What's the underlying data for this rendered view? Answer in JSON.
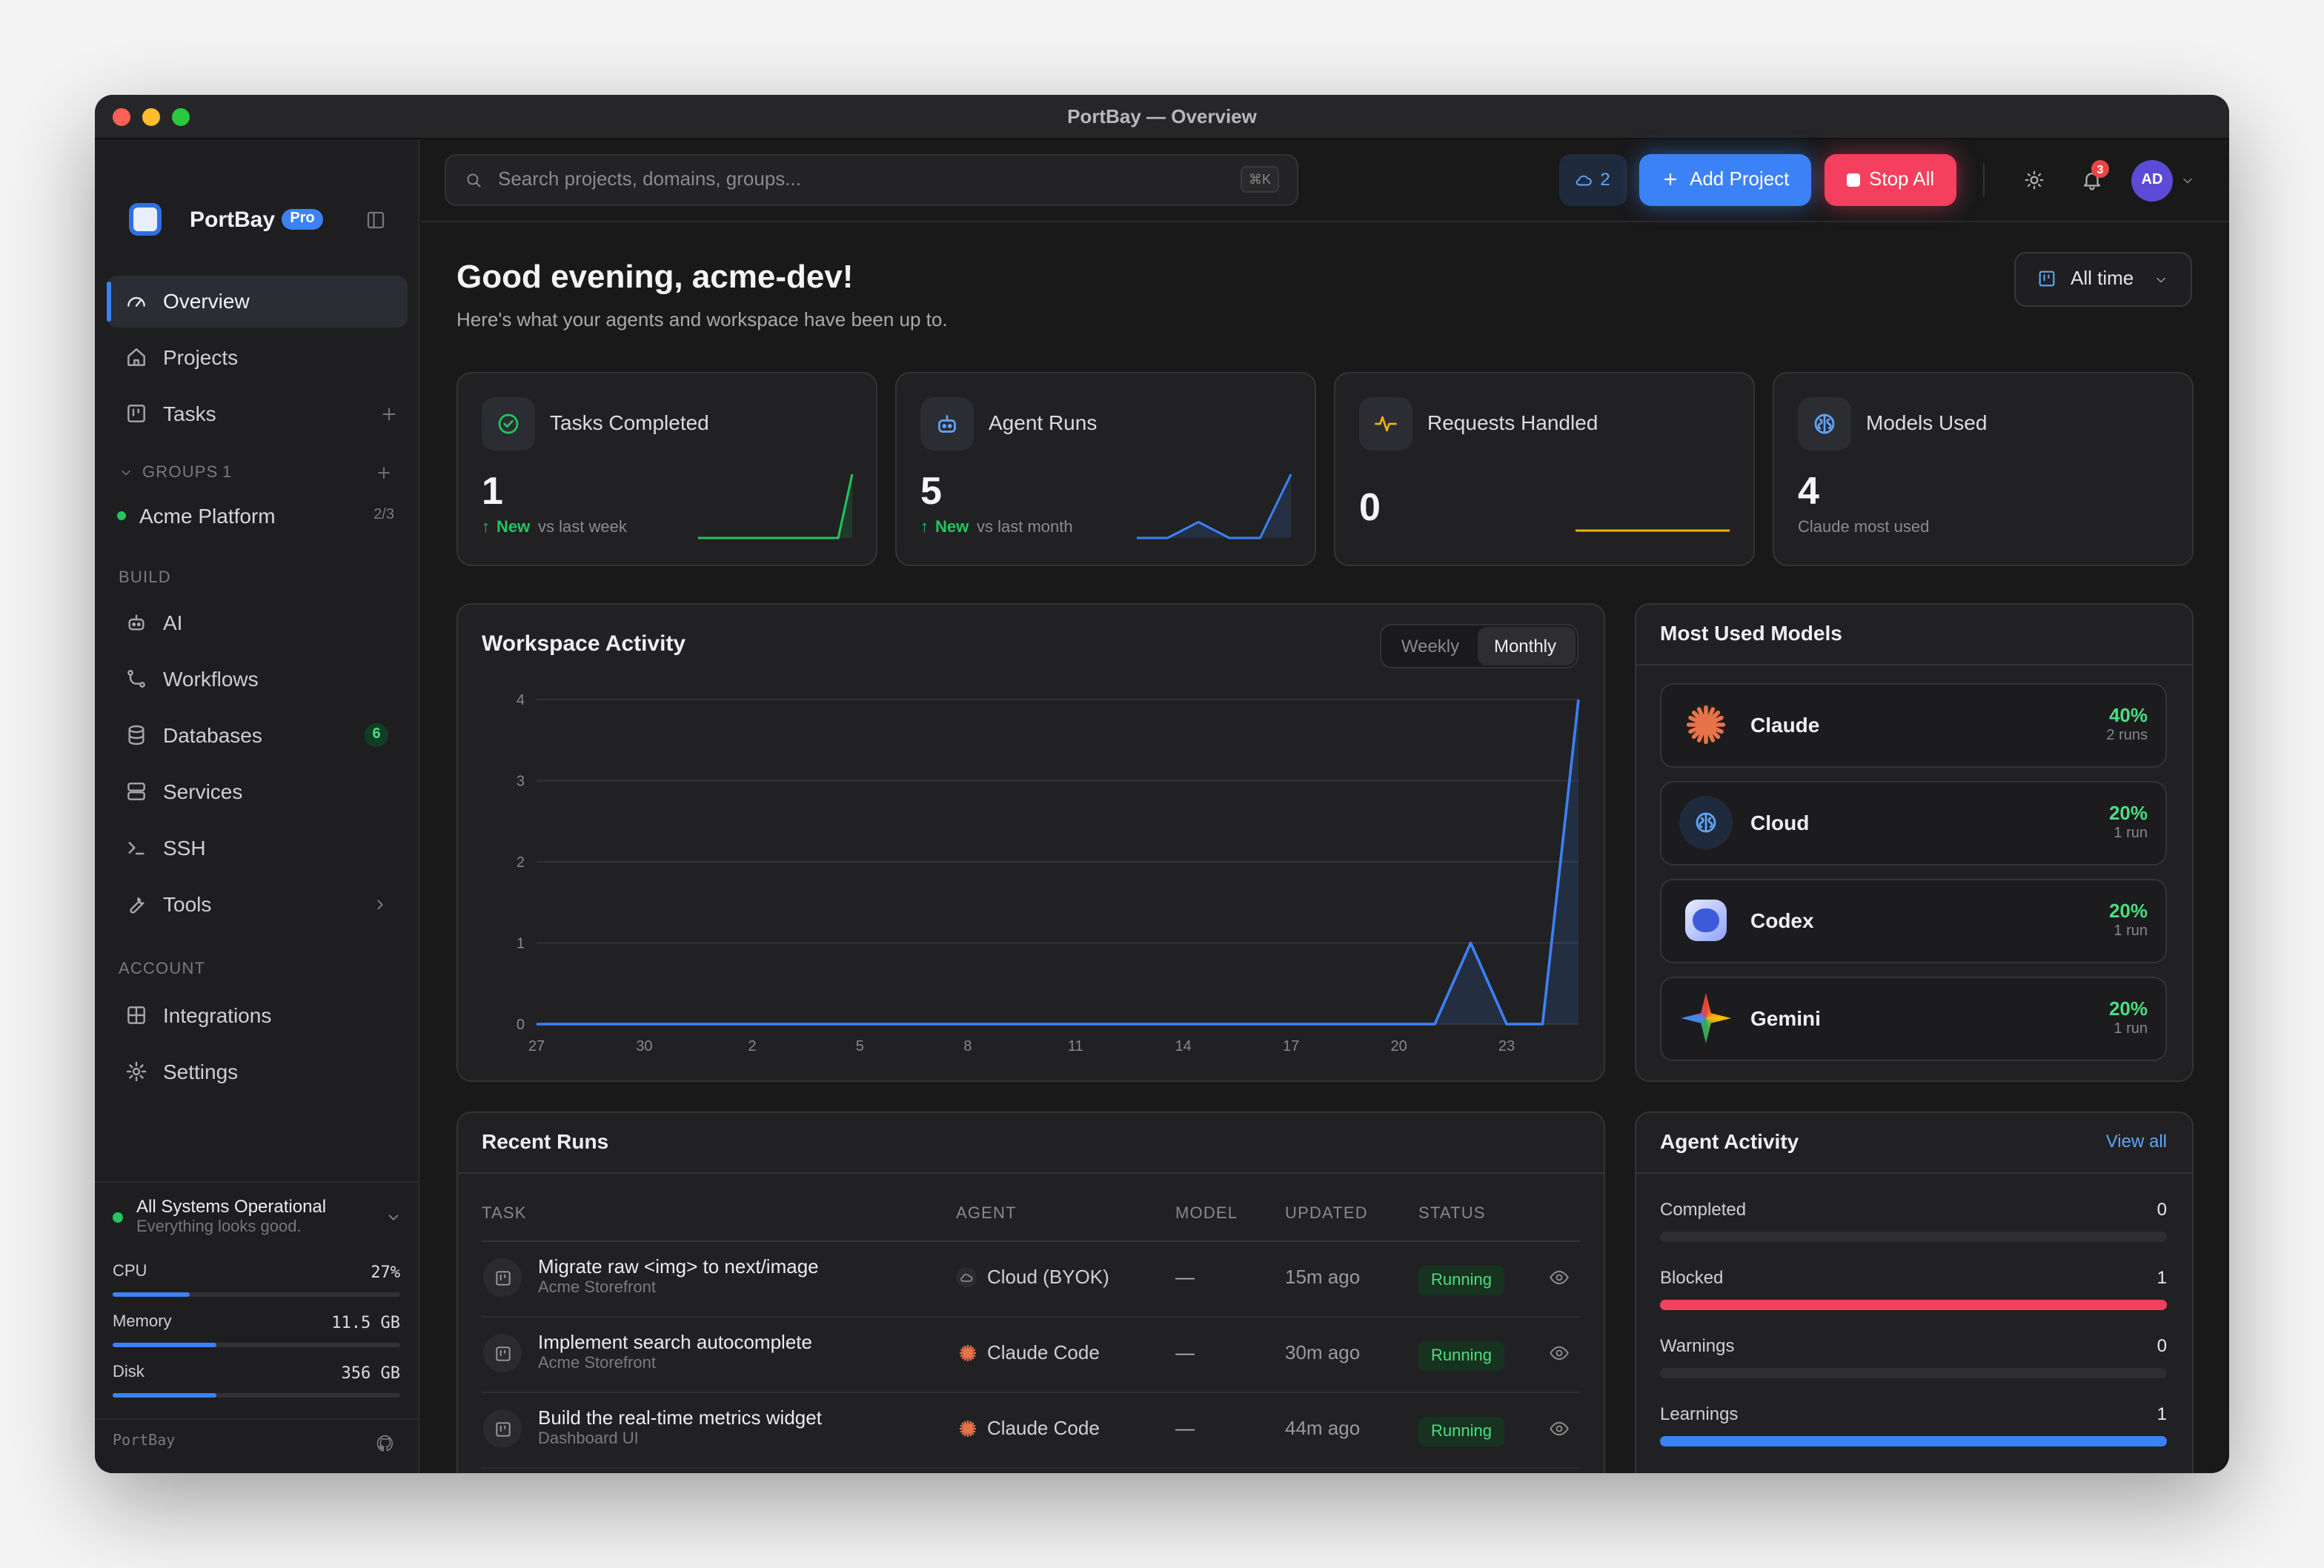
{
  "window_title": "PortBay — Overview",
  "sidebar": {
    "brand": "PortBay",
    "badge": "Pro",
    "nav": [
      {
        "label": "Overview",
        "icon": "gauge"
      },
      {
        "label": "Projects",
        "icon": "home"
      },
      {
        "label": "Tasks",
        "icon": "board"
      }
    ],
    "groups_label": "GROUPS",
    "groups_count": "1",
    "groups": [
      {
        "label": "Acme Platform",
        "count": "2/3"
      }
    ],
    "build_label": "BUILD",
    "build": [
      {
        "label": "AI",
        "icon": "bot"
      },
      {
        "label": "Workflows",
        "icon": "branch"
      },
      {
        "label": "Databases",
        "icon": "db",
        "badge": "6"
      },
      {
        "label": "Services",
        "icon": "server"
      },
      {
        "label": "SSH",
        "icon": "term"
      },
      {
        "label": "Tools",
        "icon": "wrench"
      }
    ],
    "account_label": "ACCOUNT",
    "account": [
      {
        "label": "Integrations",
        "icon": "grid"
      },
      {
        "label": "Settings",
        "icon": "gear"
      }
    ],
    "status": {
      "title": "All Systems Operational",
      "subtitle": "Everything looks good."
    },
    "meters": [
      {
        "label": "CPU",
        "value": "27%",
        "fill": 27
      },
      {
        "label": "Memory",
        "value": "11.5 GB",
        "fill": 36
      },
      {
        "label": "Disk",
        "value": "356 GB",
        "fill": 36
      }
    ],
    "footer": "PortBay"
  },
  "topbar": {
    "search_placeholder": "Search projects, domains, groups...",
    "shortcut": "⌘K",
    "cloud_count": "2",
    "add_project": "Add Project",
    "stop_all": "Stop All",
    "notifications": "3",
    "avatar": "AD"
  },
  "header": {
    "greeting": "Good evening, acme-dev!",
    "subtitle": "Here's what your agents and workspace have been up to.",
    "range": "All time"
  },
  "stats": [
    {
      "title": "Tasks Completed",
      "value": "1",
      "delta": "New",
      "note": "vs last week",
      "color": "#22c55e",
      "trend": [
        0,
        0,
        0,
        0,
        0,
        0,
        0,
        0,
        0,
        0,
        0,
        1
      ]
    },
    {
      "title": "Agent Runs",
      "value": "5",
      "delta": "New",
      "note": "vs last month",
      "color": "#3b82f6",
      "trend": [
        0,
        0,
        1,
        0,
        0,
        4
      ]
    },
    {
      "title": "Requests Handled",
      "value": "0",
      "color": "#eab308",
      "trend": [
        0,
        0,
        0,
        0,
        0,
        0
      ]
    },
    {
      "title": "Models Used",
      "value": "4",
      "note": "Claude most used"
    }
  ],
  "activity_toggle": [
    "Weekly",
    "Monthly"
  ],
  "chart_data": {
    "type": "line",
    "title": "Workspace Activity",
    "categories": [
      "27",
      null,
      null,
      "30",
      null,
      null,
      "2",
      null,
      null,
      "5",
      null,
      null,
      "8",
      null,
      null,
      "11",
      null,
      null,
      "14",
      null,
      null,
      "17",
      null,
      null,
      "20",
      null,
      null,
      "23",
      null,
      null
    ],
    "series": [
      {
        "name": "Activity",
        "color": "#3b82f6",
        "values": [
          0,
          0,
          0,
          0,
          0,
          0,
          0,
          0,
          0,
          0,
          0,
          0,
          0,
          0,
          0,
          0,
          0,
          0,
          0,
          0,
          0,
          0,
          0,
          0,
          0,
          0,
          1,
          0,
          0,
          4
        ]
      }
    ],
    "ylim": [
      0,
      4
    ],
    "yticks": [
      0,
      1,
      2,
      3,
      4
    ],
    "grid": true
  },
  "models": {
    "title": "Most Used Models",
    "items": [
      {
        "name": "Claude",
        "share": "40%",
        "runs": "2 runs"
      },
      {
        "name": "Cloud",
        "share": "20%",
        "runs": "1 run"
      },
      {
        "name": "Codex",
        "share": "20%",
        "runs": "1 run"
      },
      {
        "name": "Gemini",
        "share": "20%",
        "runs": "1 run"
      }
    ]
  },
  "runs": {
    "title": "Recent Runs",
    "columns": [
      "TASK",
      "AGENT",
      "MODEL",
      "UPDATED",
      "STATUS"
    ],
    "rows": [
      {
        "task": "Migrate raw <img> to next/image",
        "project": "Acme Storefront",
        "agent": "Cloud (BYOK)",
        "model": "—",
        "updated": "15m ago",
        "status": "Running"
      },
      {
        "task": "Implement search autocomplete",
        "project": "Acme Storefront",
        "agent": "Claude Code",
        "model": "—",
        "updated": "30m ago",
        "status": "Running"
      },
      {
        "task": "Build the real-time metrics widget",
        "project": "Dashboard UI",
        "agent": "Claude Code",
        "model": "—",
        "updated": "44m ago",
        "status": "Running"
      }
    ]
  },
  "agent_activity": {
    "title": "Agent Activity",
    "link": "View all",
    "items": [
      {
        "label": "Completed",
        "value": 0,
        "color": "#22c55e"
      },
      {
        "label": "Blocked",
        "value": 1,
        "color": "#f43f5e"
      },
      {
        "label": "Warnings",
        "value": 0,
        "color": "#eab308"
      },
      {
        "label": "Learnings",
        "value": 1,
        "color": "#3b82f6"
      }
    ]
  }
}
